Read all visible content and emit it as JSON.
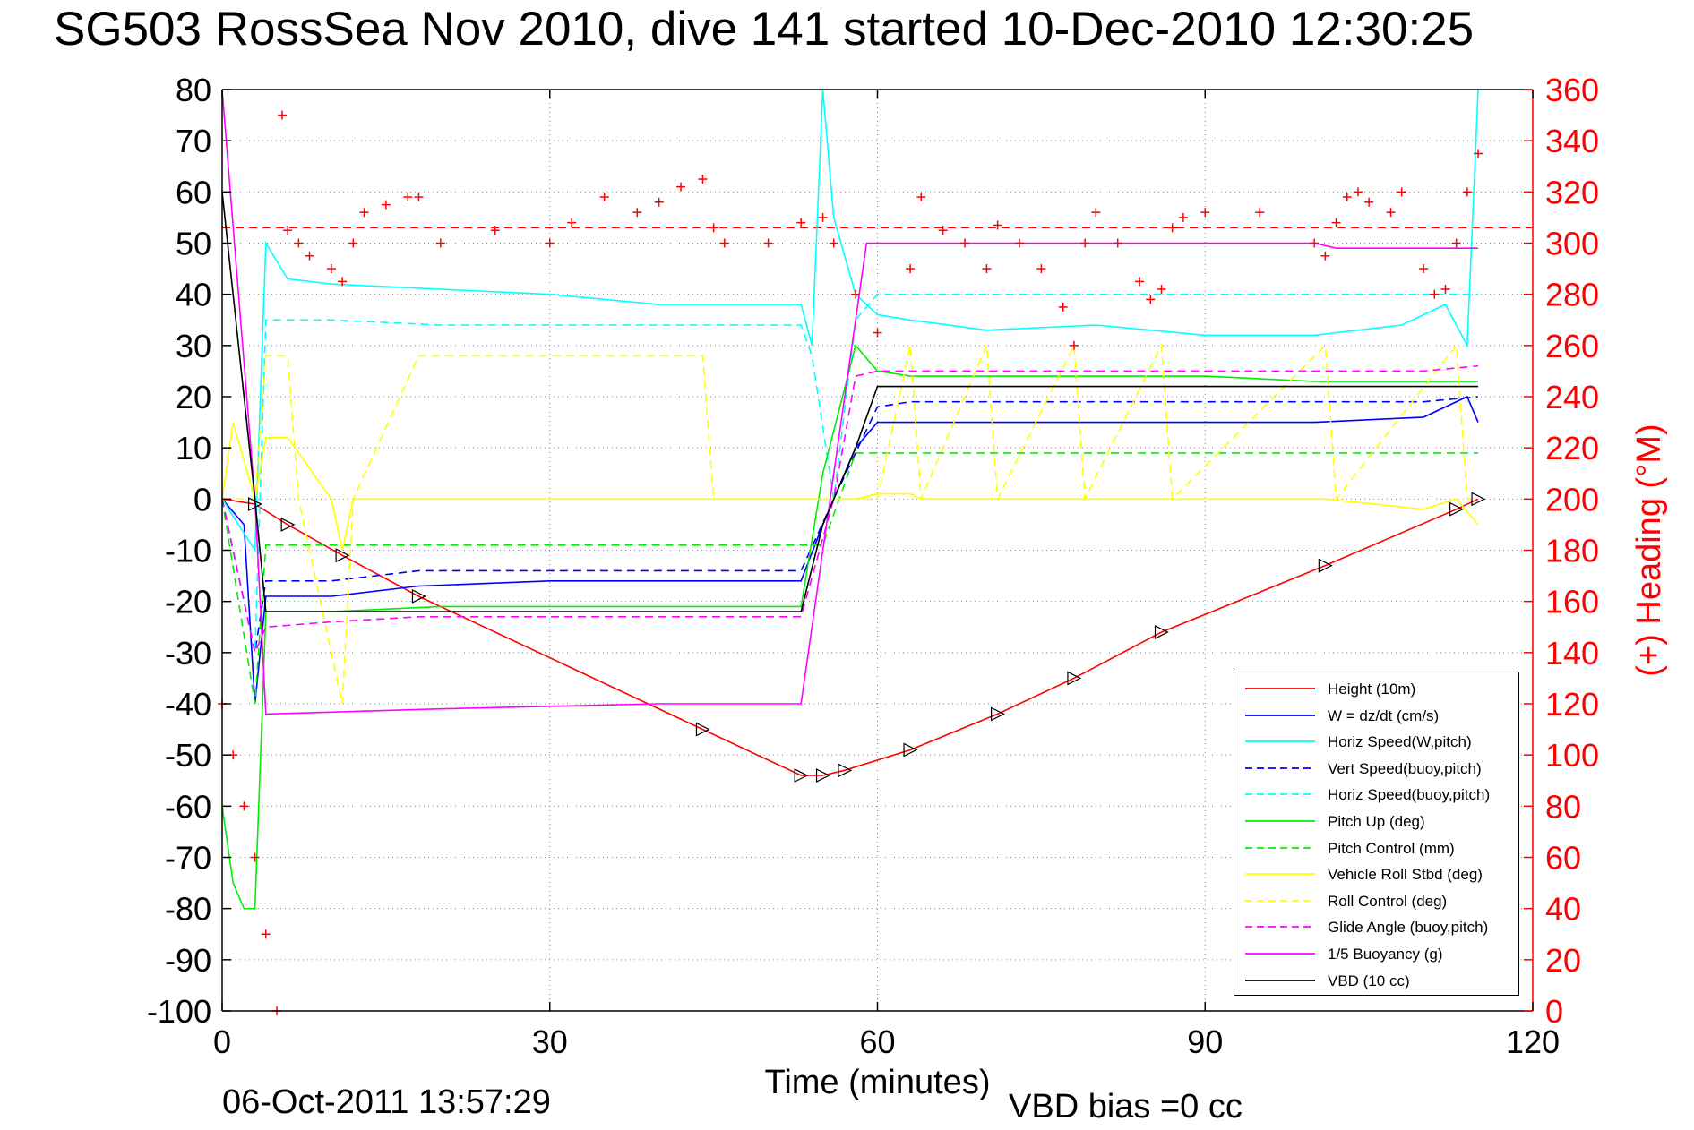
{
  "title": "SG503 RossSea Nov 2010, dive 141 started 10-Dec-2010 12:30:25",
  "timestamp": "06-Oct-2011 13:57:29",
  "vbd_bias": "VBD bias =0 cc",
  "chart_data": {
    "type": "line",
    "xlabel": "Time (minutes)",
    "ylabel": "",
    "ylabel_right": "(+) Heading (°M)",
    "xlim": [
      0,
      120
    ],
    "ylim": [
      -100,
      80
    ],
    "ylim_right": [
      0,
      360
    ],
    "xticks": [
      0,
      30,
      60,
      90,
      120
    ],
    "yticks": [
      80,
      70,
      60,
      50,
      40,
      30,
      20,
      10,
      0,
      -10,
      -20,
      -30,
      -40,
      -50,
      -60,
      -70,
      -80,
      -90,
      -100
    ],
    "yticks_right": [
      360,
      340,
      320,
      300,
      280,
      260,
      240,
      220,
      200,
      180,
      160,
      140,
      120,
      100,
      80,
      60,
      40,
      20,
      0
    ],
    "grid": true,
    "legend_position": "bottom-right",
    "colors": {
      "red": "#ff0000",
      "blue": "#0000ff",
      "cyan": "#00ffff",
      "green": "#00ee00",
      "yellow": "#ffff00",
      "magenta": "#ff00ff",
      "black": "#000000"
    },
    "reference_lines": [
      {
        "axis": "right",
        "y": 306,
        "color": "#ff0000",
        "style": "dashed"
      }
    ],
    "series": [
      {
        "name": "Height (10m)",
        "color": "#ff0000",
        "style": "solid",
        "x": [
          0,
          3,
          6,
          11,
          18,
          44,
          53,
          55,
          57,
          63,
          71,
          78,
          86,
          101,
          113,
          115
        ],
        "y": [
          0,
          -1,
          -5,
          -11,
          -19,
          -45,
          -54,
          -54,
          -53,
          -49,
          -42,
          -35,
          -26,
          -13,
          -2,
          0
        ]
      },
      {
        "name": "W = dz/dt (cm/s)",
        "color": "#0000ff",
        "style": "solid",
        "x": [
          0,
          2,
          3,
          4,
          10,
          18,
          30,
          40,
          53,
          55,
          58,
          60,
          63,
          70,
          80,
          90,
          100,
          110,
          114,
          115
        ],
        "y": [
          0,
          -5,
          -40,
          -19,
          -19,
          -17,
          -16,
          -16,
          -16,
          -5,
          10,
          15,
          15,
          15,
          15,
          15,
          15,
          16,
          20,
          15
        ]
      },
      {
        "name": "Horiz Speed(W,pitch)",
        "color": "#00ffff",
        "style": "solid",
        "x": [
          0,
          3,
          4,
          6,
          10,
          20,
          30,
          40,
          53,
          54,
          55,
          56,
          58,
          60,
          63,
          70,
          80,
          90,
          100,
          108,
          112,
          114,
          115
        ],
        "y": [
          0,
          -10,
          50,
          43,
          42,
          41,
          40,
          38,
          38,
          30,
          80,
          55,
          40,
          36,
          35,
          33,
          34,
          32,
          32,
          34,
          38,
          30,
          80
        ]
      },
      {
        "name": "Vert Speed(buoy,pitch)",
        "color": "#0000ff",
        "style": "dashed",
        "x": [
          0,
          3,
          4,
          10,
          18,
          30,
          40,
          53,
          56,
          60,
          63,
          70,
          80,
          90,
          100,
          110,
          115
        ],
        "y": [
          0,
          -30,
          -16,
          -16,
          -14,
          -14,
          -14,
          -14,
          0,
          18,
          19,
          19,
          19,
          19,
          19,
          19,
          20
        ]
      },
      {
        "name": "Horiz Speed(buoy,pitch)",
        "color": "#00ffff",
        "style": "dashed",
        "x": [
          0,
          3,
          4,
          10,
          20,
          30,
          40,
          53,
          54,
          56,
          58,
          60,
          70,
          80,
          90,
          100,
          110,
          115
        ],
        "y": [
          0,
          -30,
          35,
          35,
          34,
          34,
          34,
          34,
          28,
          0,
          35,
          40,
          40,
          40,
          40,
          40,
          40,
          40
        ]
      },
      {
        "name": "Pitch Up (deg)",
        "color": "#00ee00",
        "style": "solid",
        "x": [
          0,
          1,
          2,
          3,
          4,
          10,
          20,
          30,
          40,
          53,
          55,
          58,
          60,
          63,
          70,
          80,
          90,
          100,
          110,
          115
        ],
        "y": [
          -60,
          -75,
          -80,
          -80,
          -22,
          -22,
          -21,
          -21,
          -21,
          -21,
          5,
          30,
          25,
          24,
          24,
          24,
          24,
          23,
          23,
          23
        ]
      },
      {
        "name": "Pitch Control (mm)",
        "color": "#00ee00",
        "style": "dashed",
        "x": [
          0,
          3,
          4,
          53,
          55,
          58,
          60,
          115
        ],
        "y": [
          0,
          -40,
          -9,
          -9,
          -9,
          9,
          9,
          9
        ]
      },
      {
        "name": "Vehicle Roll Stbd (deg)",
        "color": "#ffff00",
        "style": "solid",
        "x": [
          0,
          1,
          3,
          4,
          6,
          10,
          11,
          12,
          18,
          30,
          44,
          45,
          53,
          58,
          60,
          63,
          64,
          70,
          80,
          86,
          90,
          101,
          110,
          113,
          115
        ],
        "y": [
          0,
          15,
          0,
          12,
          12,
          0,
          -10,
          0,
          0,
          0,
          0,
          0,
          0,
          0,
          1,
          1,
          0,
          0,
          0,
          0,
          0,
          0,
          -2,
          0,
          -5
        ]
      },
      {
        "name": "Roll Control (deg)",
        "color": "#ffff00",
        "style": "dashed",
        "x": [
          0,
          3,
          4,
          6,
          7,
          11,
          12,
          18,
          44,
          45,
          53,
          58,
          60,
          63,
          64,
          70,
          71,
          78,
          79,
          86,
          87,
          101,
          102,
          113,
          114,
          115
        ],
        "y": [
          0,
          0,
          28,
          28,
          0,
          -40,
          0,
          28,
          28,
          0,
          0,
          0,
          0,
          30,
          0,
          30,
          0,
          30,
          0,
          30,
          0,
          30,
          0,
          30,
          0,
          0
        ]
      },
      {
        "name": "Glide Angle (buoy,pitch)",
        "color": "#ff00ff",
        "style": "dashed",
        "x": [
          0,
          3,
          4,
          10,
          18,
          30,
          40,
          53,
          56,
          58,
          60,
          70,
          80,
          90,
          100,
          110,
          115
        ],
        "y": [
          0,
          -30,
          -25,
          -24,
          -23,
          -23,
          -23,
          -23,
          0,
          24,
          25,
          25,
          25,
          25,
          25,
          25,
          26
        ]
      },
      {
        "name": "1/5 Buoyancy (g)",
        "color": "#ff00ff",
        "style": "solid",
        "x": [
          0,
          3,
          4,
          20,
          40,
          53,
          59,
          60,
          80,
          100,
          102,
          115
        ],
        "y": [
          80,
          0,
          -42,
          -41,
          -40,
          -40,
          50,
          50,
          50,
          50,
          49,
          49
        ]
      },
      {
        "name": "VBD (10 cc)",
        "color": "#000000",
        "style": "solid",
        "x": [
          0,
          1,
          2,
          3,
          4,
          10,
          30,
          53,
          55,
          58,
          60,
          115
        ],
        "y": [
          60,
          40,
          20,
          0,
          -22,
          -22,
          -22,
          -22,
          -5,
          10,
          22,
          22
        ]
      }
    ],
    "heading": {
      "name": "(+) Heading",
      "color": "#ff0000",
      "marker": "+",
      "axis": "right",
      "x": [
        0,
        1,
        2,
        3,
        4,
        5,
        5.5,
        6,
        7,
        8,
        10,
        11,
        12,
        13,
        15,
        17,
        18,
        20,
        25,
        30,
        32,
        35,
        38,
        40,
        42,
        44,
        45,
        46,
        50,
        53,
        55,
        56,
        58,
        60,
        63,
        64,
        66,
        68,
        70,
        71,
        73,
        75,
        77,
        78,
        79,
        80,
        82,
        84,
        85,
        86,
        87,
        88,
        90,
        95,
        100,
        101,
        102,
        103,
        104,
        105,
        107,
        108,
        110,
        111,
        112,
        113,
        114,
        115
      ],
      "y": [
        120,
        100,
        80,
        60,
        30,
        0,
        350,
        305,
        300,
        295,
        290,
        285,
        300,
        312,
        315,
        318,
        318,
        300,
        305,
        300,
        308,
        318,
        312,
        316,
        322,
        325,
        306,
        300,
        300,
        308,
        310,
        300,
        280,
        265,
        290,
        318,
        305,
        300,
        290,
        307,
        300,
        290,
        275,
        260,
        300,
        312,
        300,
        285,
        278,
        282,
        306,
        310,
        312,
        312,
        300,
        295,
        308,
        318,
        320,
        316,
        312,
        320,
        290,
        280,
        282,
        300,
        320,
        335
      ]
    }
  },
  "legend": [
    {
      "label": "Height (10m)",
      "color": "#ff0000",
      "dash": false
    },
    {
      "label": "W = dz/dt (cm/s)",
      "color": "#0000ff",
      "dash": false
    },
    {
      "label": "Horiz Speed(W,pitch)",
      "color": "#00ffff",
      "dash": false
    },
    {
      "label": "Vert Speed(buoy,pitch)",
      "color": "#0000ff",
      "dash": true
    },
    {
      "label": "Horiz Speed(buoy,pitch)",
      "color": "#00ffff",
      "dash": true
    },
    {
      "label": "Pitch Up (deg)",
      "color": "#00ee00",
      "dash": false
    },
    {
      "label": "Pitch Control (mm)",
      "color": "#00ee00",
      "dash": true
    },
    {
      "label": "Vehicle Roll Stbd (deg)",
      "color": "#ffff00",
      "dash": false
    },
    {
      "label": "Roll Control (deg)",
      "color": "#ffff00",
      "dash": true
    },
    {
      "label": "Glide Angle (buoy,pitch)",
      "color": "#ff00ff",
      "dash": true
    },
    {
      "label": "1/5 Buoyancy (g)",
      "color": "#ff00ff",
      "dash": false
    },
    {
      "label": "VBD (10 cc)",
      "color": "#000000",
      "dash": false
    }
  ]
}
